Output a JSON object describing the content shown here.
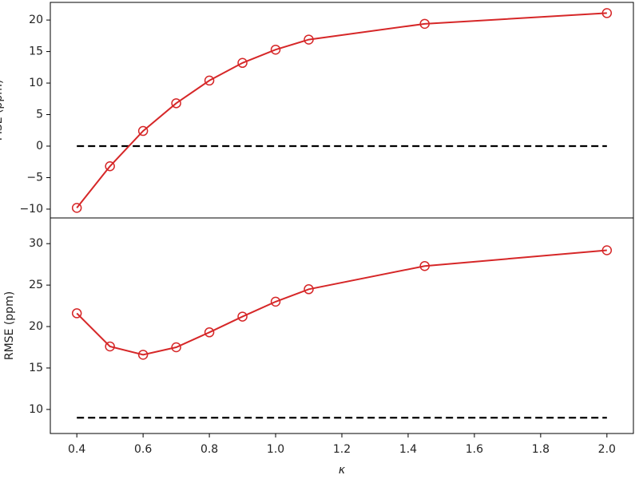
{
  "chart_data": [
    {
      "type": "line",
      "ylabel": "MSE (ppm)",
      "x": [
        0.4,
        0.5,
        0.6,
        0.7,
        0.8,
        0.9,
        1.0,
        1.1,
        1.45,
        2.0
      ],
      "series": [
        {
          "color": "#d62728",
          "values": [
            -9.8,
            -3.2,
            2.4,
            6.8,
            10.4,
            13.2,
            15.3,
            16.9,
            19.4,
            21.1
          ]
        }
      ],
      "reference": {
        "value": 0,
        "color": "#000000"
      },
      "xlim": [
        0.32,
        2.08
      ],
      "ylim": [
        -11.4,
        22.8
      ],
      "yticks": [
        {
          "value": -10,
          "label": "−10"
        },
        {
          "value": -5,
          "label": "−5"
        },
        0,
        5,
        10,
        15,
        20
      ]
    },
    {
      "type": "line",
      "ylabel": "RMSE (ppm)",
      "xlabel": "κ",
      "x": [
        0.4,
        0.5,
        0.6,
        0.7,
        0.8,
        0.9,
        1.0,
        1.1,
        1.45,
        2.0
      ],
      "series": [
        {
          "color": "#d62728",
          "values": [
            21.6,
            17.6,
            16.6,
            17.5,
            19.3,
            21.2,
            23.0,
            24.5,
            27.3,
            29.2
          ]
        }
      ],
      "reference": {
        "value": 9,
        "color": "#000000"
      },
      "xlim": [
        0.32,
        2.08
      ],
      "ylim": [
        7.1,
        33.1
      ],
      "yticks": [
        10,
        15,
        20,
        25,
        30
      ],
      "xticks": [
        0.4,
        0.6,
        0.8,
        {
          "value": 1.0,
          "label": "1.0"
        },
        1.2,
        1.4,
        1.6,
        1.8,
        {
          "value": 2.0,
          "label": "2.0"
        }
      ]
    }
  ]
}
